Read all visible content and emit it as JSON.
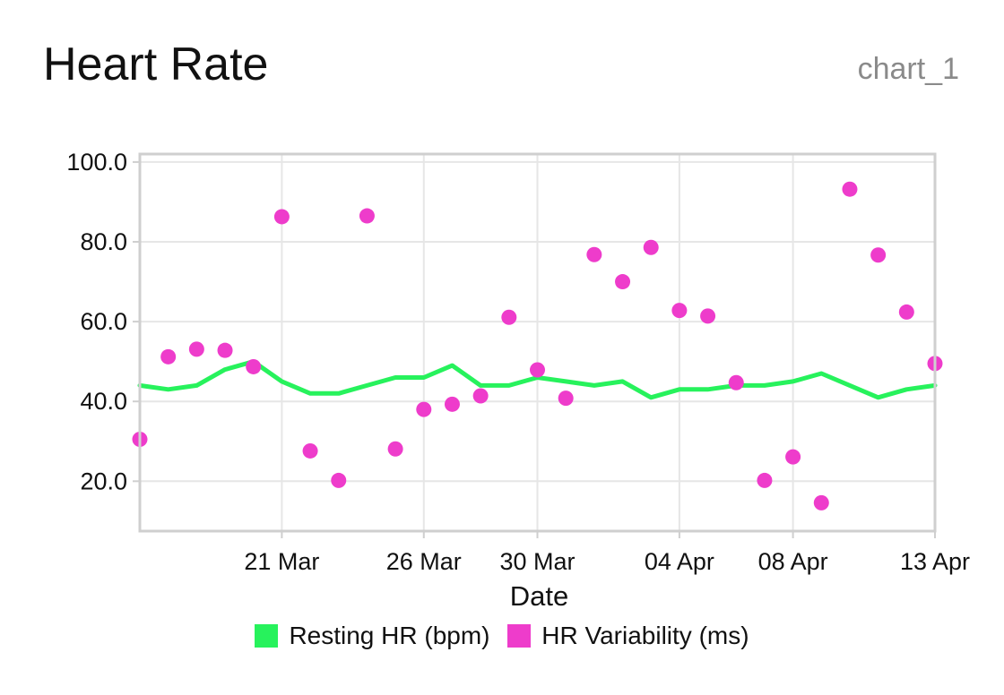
{
  "header": {
    "title": "Heart Rate",
    "chart_id": "chart_1"
  },
  "chart_data": {
    "type": "line",
    "title": "Heart Rate",
    "xlabel": "Date",
    "ylabel": "",
    "x_ticks": [
      "21 Mar",
      "26 Mar",
      "30 Mar",
      "04 Apr",
      "08 Apr",
      "13 Apr"
    ],
    "y_ticks": [
      "20.0",
      "40.0",
      "60.0",
      "80.0",
      "100.0"
    ],
    "ylim": [
      7.5,
      102
    ],
    "xlim": [
      "2024-03-16",
      "2024-04-13"
    ],
    "grid": true,
    "legend_position": "bottom",
    "x": [
      "2024-03-16",
      "2024-03-17",
      "2024-03-18",
      "2024-03-19",
      "2024-03-20",
      "2024-03-21",
      "2024-03-22",
      "2024-03-23",
      "2024-03-24",
      "2024-03-25",
      "2024-03-26",
      "2024-03-27",
      "2024-03-28",
      "2024-03-29",
      "2024-03-30",
      "2024-03-31",
      "2024-04-01",
      "2024-04-02",
      "2024-04-03",
      "2024-04-04",
      "2024-04-05",
      "2024-04-06",
      "2024-04-07",
      "2024-04-08",
      "2024-04-09",
      "2024-04-10",
      "2024-04-11",
      "2024-04-12",
      "2024-04-13"
    ],
    "series": [
      {
        "name": "Resting HR (bpm)",
        "style": "line",
        "color": "#27f25c",
        "values": [
          44,
          43,
          44,
          48,
          50,
          45,
          42,
          42,
          44,
          46,
          46,
          49,
          44,
          44,
          46,
          45,
          44,
          45,
          41,
          43,
          43,
          44,
          44,
          45,
          47,
          44,
          41,
          43,
          44
        ]
      },
      {
        "name": "HR Variability (ms)",
        "style": "scatter",
        "color": "#ee3ccb",
        "values": [
          30.5,
          51.2,
          53.1,
          52.8,
          48.7,
          86.3,
          27.6,
          20.2,
          86.5,
          28.1,
          38,
          39.3,
          41.4,
          61.1,
          47.9,
          40.8,
          76.8,
          70,
          78.6,
          62.8,
          61.4,
          44.7,
          20.2,
          26.1,
          14.6,
          93.2,
          76.7,
          62.4,
          49.5
        ]
      }
    ]
  }
}
